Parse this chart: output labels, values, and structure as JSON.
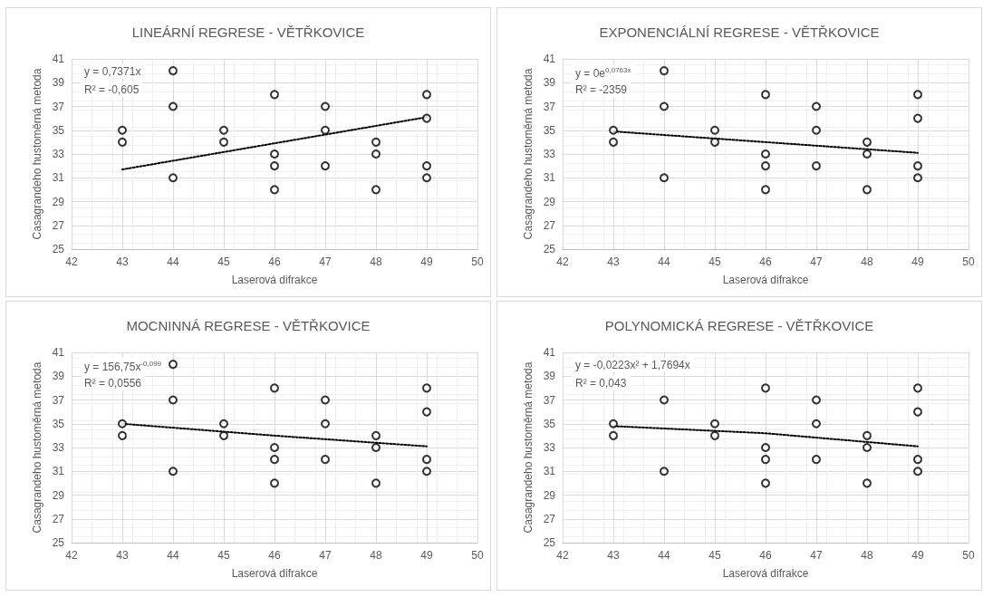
{
  "chart_data": [
    {
      "type": "scatter",
      "title": "LINEÁRNÍ REGRESE - VĚTŘKOVICE",
      "xlabel": "Laserová difrakce",
      "ylabel": "Casagrandeho hustoměrná metoda",
      "xlim": [
        42,
        50
      ],
      "xticks": [
        42,
        43,
        44,
        45,
        46,
        47,
        48,
        49,
        50
      ],
      "ylim": [
        25,
        41
      ],
      "yticks": [
        25,
        27,
        29,
        31,
        33,
        35,
        37,
        39,
        41
      ],
      "grid": true,
      "marker": "circle",
      "annotations": [
        "y = 0,7371x",
        "R² = -0,605"
      ],
      "series": [
        {
          "color": "#000000",
          "x": [
            43,
            43,
            44,
            44,
            44,
            45,
            45,
            46,
            46,
            46,
            46,
            47,
            47,
            47,
            48,
            48,
            48,
            49,
            49,
            49,
            49
          ],
          "values": [
            35,
            34,
            40,
            37,
            31,
            35,
            34,
            38,
            33,
            32,
            30,
            37,
            35,
            32,
            34,
            33,
            30,
            38,
            36,
            32,
            31
          ]
        },
        {
          "type": "line",
          "color": "#000000",
          "line_style": "dotted",
          "marker": "none",
          "x": [
            43,
            49
          ],
          "values": [
            31.7,
            36.1
          ]
        }
      ]
    },
    {
      "type": "scatter",
      "title": "EXPONENCIÁLNÍ REGRESE - VĚTŘKOVICE",
      "xlabel": "Laserová difrakce",
      "ylabel": "Casagrandeho hustoměrná metoda",
      "xlim": [
        42,
        50
      ],
      "xticks": [
        42,
        43,
        44,
        45,
        46,
        47,
        48,
        49,
        50
      ],
      "ylim": [
        25,
        41
      ],
      "yticks": [
        25,
        27,
        29,
        31,
        33,
        35,
        37,
        39,
        41
      ],
      "grid": true,
      "marker": "circle",
      "annotations": [
        "y = 0e$^{0,0763x}$",
        "R² = -2359"
      ],
      "series": [
        {
          "color": "#000000",
          "x": [
            43,
            43,
            44,
            44,
            44,
            45,
            45,
            46,
            46,
            46,
            46,
            47,
            47,
            47,
            48,
            48,
            48,
            49,
            49,
            49,
            49
          ],
          "values": [
            35,
            34,
            40,
            37,
            31,
            35,
            34,
            38,
            33,
            32,
            30,
            37,
            35,
            32,
            34,
            33,
            30,
            38,
            36,
            32,
            31
          ]
        },
        {
          "type": "line",
          "color": "#000000",
          "line_style": "dotted",
          "marker": "none",
          "x": [
            43,
            46,
            49
          ],
          "values": [
            34.9,
            34.0,
            33.1
          ]
        }
      ]
    },
    {
      "type": "scatter",
      "title": "MOCNINNÁ REGRESE - VĚTŘKOVICE",
      "xlabel": "Laserová difrakce",
      "ylabel": "Casagrandeho hustoměrná metoda",
      "xlim": [
        42,
        50
      ],
      "xticks": [
        42,
        43,
        44,
        45,
        46,
        47,
        48,
        49,
        50
      ],
      "ylim": [
        25,
        41
      ],
      "yticks": [
        25,
        27,
        29,
        31,
        33,
        35,
        37,
        39,
        41
      ],
      "grid": true,
      "marker": "circle",
      "annotations": [
        "y = 156,75x$^{-0,099}$",
        "R² = 0,0556"
      ],
      "series": [
        {
          "color": "#000000",
          "x": [
            43,
            43,
            44,
            44,
            44,
            45,
            45,
            46,
            46,
            46,
            46,
            47,
            47,
            47,
            48,
            48,
            48,
            49,
            49,
            49,
            49
          ],
          "values": [
            35,
            34,
            40,
            37,
            31,
            35,
            34,
            38,
            33,
            32,
            30,
            37,
            35,
            32,
            34,
            33,
            30,
            38,
            36,
            32,
            31
          ]
        },
        {
          "type": "line",
          "color": "#000000",
          "line_style": "dotted",
          "marker": "none",
          "x": [
            43,
            46,
            49
          ],
          "values": [
            35.0,
            34.0,
            33.1
          ]
        }
      ]
    },
    {
      "type": "scatter",
      "title": "POLYNOMICKÁ REGRESE - VĚTŘKOVICE",
      "xlabel": "Laserová difrakce",
      "ylabel": "Casagrandeho hustoměrná metoda",
      "xlim": [
        42,
        50
      ],
      "xticks": [
        42,
        43,
        44,
        45,
        46,
        47,
        48,
        49,
        50
      ],
      "ylim": [
        25,
        41
      ],
      "yticks": [
        25,
        27,
        29,
        31,
        33,
        35,
        37,
        39,
        41
      ],
      "grid": true,
      "marker": "circle",
      "annotations": [
        "y = -0,0223x² + 1,7694x",
        "R² = 0,043"
      ],
      "series": [
        {
          "color": "#000000",
          "x": [
            43,
            43,
            44,
            44,
            45,
            45,
            46,
            46,
            46,
            46,
            47,
            47,
            47,
            48,
            48,
            48,
            49,
            49,
            49,
            49
          ],
          "values": [
            35,
            34,
            37,
            31,
            35,
            34,
            38,
            33,
            32,
            30,
            37,
            35,
            32,
            34,
            33,
            30,
            38,
            36,
            32,
            31
          ]
        },
        {
          "type": "line",
          "color": "#000000",
          "line_style": "dotted",
          "marker": "none",
          "x": [
            43,
            46,
            49
          ],
          "values": [
            34.8,
            34.2,
            33.1
          ]
        }
      ]
    }
  ]
}
